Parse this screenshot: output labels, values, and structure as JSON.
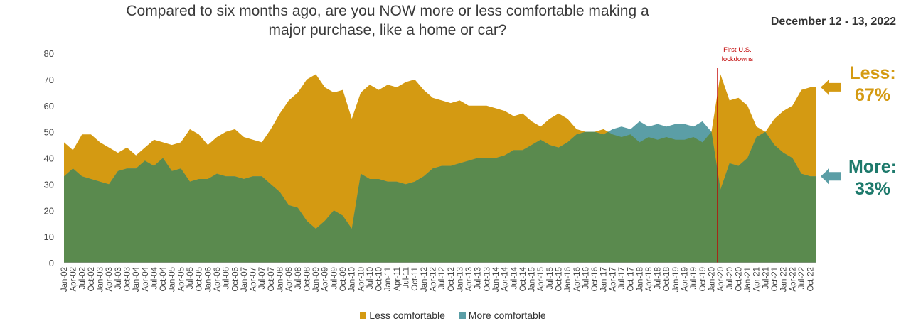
{
  "chart_data": {
    "type": "area",
    "title": "Compared to six months ago, are you NOW more or less comfortable making a major purchase, like a home or car?",
    "date_range": "December 12 - 13, 2022",
    "ylim": [
      0,
      80
    ],
    "yticks": [
      0,
      10,
      20,
      30,
      40,
      50,
      60,
      70,
      80
    ],
    "xlim": [
      "2002-01",
      "2022-12"
    ],
    "x_tick_labels": [
      "Jan-02",
      "Apr-02",
      "Jul-02",
      "Oct-02",
      "Jan-03",
      "Apr-03",
      "Jul-03",
      "Oct-03",
      "Jan-04",
      "Apr-04",
      "Jul-04",
      "Oct-04",
      "Jan-05",
      "Apr-05",
      "Jul-05",
      "Oct-05",
      "Jan-06",
      "Apr-06",
      "Jul-06",
      "Oct-06",
      "Jan-07",
      "Apr-07",
      "Jul-07",
      "Oct-07",
      "Jan-08",
      "Apr-08",
      "Jul-08",
      "Oct-08",
      "Jan-09",
      "Apr-09",
      "Jul-09",
      "Oct-09",
      "Jan-10",
      "Apr-10",
      "Jul-10",
      "Oct-10",
      "Jan-11",
      "Apr-11",
      "Jul-11",
      "Oct-11",
      "Jan-12",
      "Apr-12",
      "Jul-12",
      "Oct-12",
      "Jan-13",
      "Apr-13",
      "Jul-13",
      "Oct-13",
      "Jan-14",
      "Apr-14",
      "Jul-14",
      "Oct-14",
      "Jan-15",
      "Apr-15",
      "Jul-15",
      "Oct-15",
      "Jan-16",
      "Apr-16",
      "Jul-16",
      "Oct-16",
      "Jan-17",
      "Apr-17",
      "Jul-17",
      "Oct-17",
      "Jan-18",
      "Apr-18",
      "Jul-18",
      "Oct-18",
      "Jan-19",
      "Apr-19",
      "Jul-19",
      "Oct-19",
      "Jan-20",
      "Apr-20",
      "Jul-20",
      "Oct-20",
      "Jan-21",
      "Apr-21",
      "Jul-21",
      "Oct-21",
      "Jan-22",
      "Apr-22",
      "Jul-22",
      "Oct-22"
    ],
    "series": [
      {
        "name": "Less comfortable",
        "color": "#d49a12",
        "points": [
          [
            "2002-01",
            46
          ],
          [
            "2002-04",
            43
          ],
          [
            "2002-07",
            49
          ],
          [
            "2002-10",
            49
          ],
          [
            "2003-01",
            46
          ],
          [
            "2003-04",
            44
          ],
          [
            "2003-07",
            42
          ],
          [
            "2003-10",
            44
          ],
          [
            "2004-01",
            41
          ],
          [
            "2004-04",
            44
          ],
          [
            "2004-07",
            47
          ],
          [
            "2004-10",
            46
          ],
          [
            "2005-01",
            45
          ],
          [
            "2005-04",
            46
          ],
          [
            "2005-07",
            51
          ],
          [
            "2005-10",
            49
          ],
          [
            "2006-01",
            45
          ],
          [
            "2006-04",
            48
          ],
          [
            "2006-07",
            50
          ],
          [
            "2006-10",
            51
          ],
          [
            "2007-01",
            48
          ],
          [
            "2007-04",
            47
          ],
          [
            "2007-07",
            46
          ],
          [
            "2007-10",
            51
          ],
          [
            "2008-01",
            57
          ],
          [
            "2008-04",
            62
          ],
          [
            "2008-07",
            65
          ],
          [
            "2008-10",
            70
          ],
          [
            "2009-01",
            72
          ],
          [
            "2009-04",
            67
          ],
          [
            "2009-07",
            65
          ],
          [
            "2009-10",
            66
          ],
          [
            "2010-01",
            55
          ],
          [
            "2010-04",
            65
          ],
          [
            "2010-07",
            68
          ],
          [
            "2010-10",
            66
          ],
          [
            "2011-01",
            68
          ],
          [
            "2011-04",
            67
          ],
          [
            "2011-07",
            69
          ],
          [
            "2011-10",
            70
          ],
          [
            "2012-01",
            66
          ],
          [
            "2012-04",
            63
          ],
          [
            "2012-07",
            62
          ],
          [
            "2012-10",
            61
          ],
          [
            "2013-01",
            62
          ],
          [
            "2013-04",
            60
          ],
          [
            "2013-07",
            60
          ],
          [
            "2013-10",
            60
          ],
          [
            "2014-01",
            59
          ],
          [
            "2014-04",
            58
          ],
          [
            "2014-07",
            56
          ],
          [
            "2014-10",
            57
          ],
          [
            "2015-01",
            54
          ],
          [
            "2015-04",
            52
          ],
          [
            "2015-07",
            55
          ],
          [
            "2015-10",
            57
          ],
          [
            "2016-01",
            55
          ],
          [
            "2016-04",
            51
          ],
          [
            "2016-07",
            50
          ],
          [
            "2016-10",
            50
          ],
          [
            "2017-01",
            51
          ],
          [
            "2017-04",
            49
          ],
          [
            "2017-07",
            48
          ],
          [
            "2017-10",
            49
          ],
          [
            "2018-01",
            46
          ],
          [
            "2018-04",
            48
          ],
          [
            "2018-07",
            47
          ],
          [
            "2018-10",
            48
          ],
          [
            "2019-01",
            47
          ],
          [
            "2019-04",
            47
          ],
          [
            "2019-07",
            48
          ],
          [
            "2019-10",
            46
          ],
          [
            "2020-01",
            50
          ],
          [
            "2020-04",
            72
          ],
          [
            "2020-07",
            62
          ],
          [
            "2020-10",
            63
          ],
          [
            "2021-01",
            60
          ],
          [
            "2021-04",
            52
          ],
          [
            "2021-07",
            50
          ],
          [
            "2021-10",
            55
          ],
          [
            "2022-01",
            58
          ],
          [
            "2022-04",
            60
          ],
          [
            "2022-07",
            66
          ],
          [
            "2022-10",
            67
          ],
          [
            "2022-12",
            67
          ]
        ]
      },
      {
        "name": "More comfortable",
        "color": "#5b9ea6",
        "points": [
          [
            "2002-01",
            33
          ],
          [
            "2002-04",
            36
          ],
          [
            "2002-07",
            33
          ],
          [
            "2002-10",
            32
          ],
          [
            "2003-01",
            31
          ],
          [
            "2003-04",
            30
          ],
          [
            "2003-07",
            35
          ],
          [
            "2003-10",
            36
          ],
          [
            "2004-01",
            36
          ],
          [
            "2004-04",
            39
          ],
          [
            "2004-07",
            37
          ],
          [
            "2004-10",
            40
          ],
          [
            "2005-01",
            35
          ],
          [
            "2005-04",
            36
          ],
          [
            "2005-07",
            31
          ],
          [
            "2005-10",
            32
          ],
          [
            "2006-01",
            32
          ],
          [
            "2006-04",
            34
          ],
          [
            "2006-07",
            33
          ],
          [
            "2006-10",
            33
          ],
          [
            "2007-01",
            32
          ],
          [
            "2007-04",
            33
          ],
          [
            "2007-07",
            33
          ],
          [
            "2007-10",
            30
          ],
          [
            "2008-01",
            27
          ],
          [
            "2008-04",
            22
          ],
          [
            "2008-07",
            21
          ],
          [
            "2008-10",
            16
          ],
          [
            "2009-01",
            13
          ],
          [
            "2009-04",
            16
          ],
          [
            "2009-07",
            20
          ],
          [
            "2009-10",
            18
          ],
          [
            "2010-01",
            13
          ],
          [
            "2010-04",
            34
          ],
          [
            "2010-07",
            32
          ],
          [
            "2010-10",
            32
          ],
          [
            "2011-01",
            31
          ],
          [
            "2011-04",
            31
          ],
          [
            "2011-07",
            30
          ],
          [
            "2011-10",
            31
          ],
          [
            "2012-01",
            33
          ],
          [
            "2012-04",
            36
          ],
          [
            "2012-07",
            37
          ],
          [
            "2012-10",
            37
          ],
          [
            "2013-01",
            38
          ],
          [
            "2013-04",
            39
          ],
          [
            "2013-07",
            40
          ],
          [
            "2013-10",
            40
          ],
          [
            "2014-01",
            40
          ],
          [
            "2014-04",
            41
          ],
          [
            "2014-07",
            43
          ],
          [
            "2014-10",
            43
          ],
          [
            "2015-01",
            45
          ],
          [
            "2015-04",
            47
          ],
          [
            "2015-07",
            45
          ],
          [
            "2015-10",
            44
          ],
          [
            "2016-01",
            46
          ],
          [
            "2016-04",
            49
          ],
          [
            "2016-07",
            50
          ],
          [
            "2016-10",
            50
          ],
          [
            "2017-01",
            49
          ],
          [
            "2017-04",
            51
          ],
          [
            "2017-07",
            52
          ],
          [
            "2017-10",
            51
          ],
          [
            "2018-01",
            54
          ],
          [
            "2018-04",
            52
          ],
          [
            "2018-07",
            53
          ],
          [
            "2018-10",
            52
          ],
          [
            "2019-01",
            53
          ],
          [
            "2019-04",
            53
          ],
          [
            "2019-07",
            52
          ],
          [
            "2019-10",
            54
          ],
          [
            "2020-01",
            50
          ],
          [
            "2020-04",
            28
          ],
          [
            "2020-07",
            38
          ],
          [
            "2020-10",
            37
          ],
          [
            "2021-01",
            40
          ],
          [
            "2021-04",
            48
          ],
          [
            "2021-07",
            50
          ],
          [
            "2021-10",
            45
          ],
          [
            "2022-01",
            42
          ],
          [
            "2022-04",
            40
          ],
          [
            "2022-07",
            34
          ],
          [
            "2022-10",
            33
          ],
          [
            "2022-12",
            33
          ]
        ]
      }
    ],
    "overlap_color": "#5a8a4e",
    "annotation": {
      "date": "2020-03",
      "text": [
        "First U.S.",
        "lockdowns"
      ],
      "color": "#c00000"
    },
    "callouts": {
      "less": {
        "label": "Less:",
        "value": "67%",
        "color": "#d49a12"
      },
      "more": {
        "label": "More:",
        "value": "33%",
        "color": "#1e7a6c"
      }
    },
    "legend": [
      "Less comfortable",
      "More comfortable"
    ],
    "grid": false
  }
}
